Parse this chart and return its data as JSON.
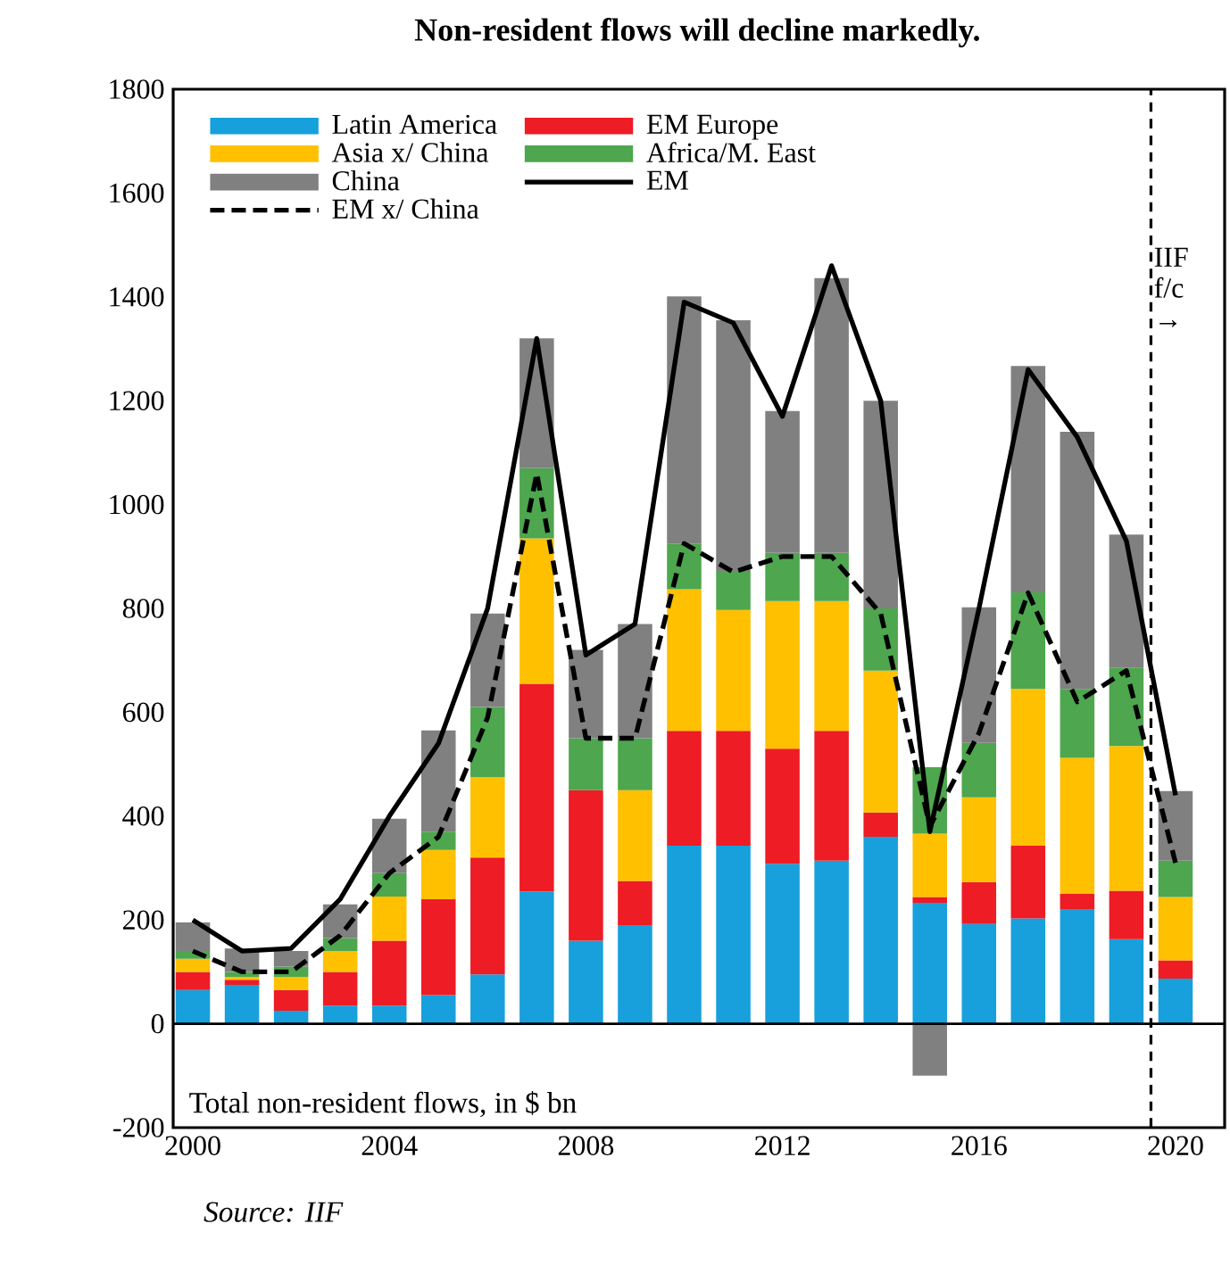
{
  "chart_data": {
    "type": "bar",
    "title": "Non-resident flows will decline markedly.",
    "annotations": [
      "Total non-resident flows, in $ bn",
      "Source: IIF"
    ],
    "x": [
      2000,
      2001,
      2002,
      2003,
      2004,
      2005,
      2006,
      2007,
      2008,
      2009,
      2010,
      2011,
      2012,
      2013,
      2014,
      2015,
      2016,
      2017,
      2018,
      2019,
      2020
    ],
    "stacked": true,
    "series": [
      {
        "name": "Latin America",
        "color": "#17a0db",
        "values": [
          65,
          75,
          25,
          35,
          35,
          55,
          95,
          255,
          160,
          190,
          343,
          343,
          308,
          314,
          360,
          233,
          192,
          203,
          221,
          163,
          87
        ]
      },
      {
        "name": "EM Europe",
        "color": "#ee1c25",
        "values": [
          35,
          10,
          40,
          65,
          125,
          185,
          225,
          400,
          290,
          85,
          221,
          221,
          222,
          250,
          47,
          11,
          81,
          140,
          29,
          93,
          35
        ]
      },
      {
        "name": "Asia x/ China",
        "color": "#ffc000",
        "values": [
          25,
          5,
          25,
          40,
          85,
          95,
          155,
          280,
          0,
          175,
          273,
          233,
          284,
          250,
          273,
          122,
          163,
          302,
          262,
          279,
          122
        ]
      },
      {
        "name": "Africa/M. East",
        "color": "#4ea64e",
        "values": [
          15,
          10,
          20,
          25,
          45,
          35,
          135,
          135,
          100,
          100,
          87,
          75,
          93,
          93,
          120,
          128,
          105,
          186,
          133,
          151,
          70
        ]
      },
      {
        "name": "China",
        "color": "#808080",
        "values": [
          55,
          45,
          30,
          65,
          105,
          195,
          180,
          250,
          170,
          220,
          477,
          483,
          273,
          529,
          400,
          -100,
          261,
          436,
          495,
          256,
          134
        ]
      },
      {
        "name": "EM",
        "type": "line",
        "color": "#000000",
        "line_style": "solid",
        "values": [
          200,
          140,
          145,
          240,
          400,
          540,
          800,
          1320,
          710,
          770,
          1390,
          1350,
          1170,
          1460,
          1200,
          370,
          800,
          1260,
          1130,
          930,
          440
        ]
      },
      {
        "name": "EM x/ China",
        "type": "line",
        "color": "#000000",
        "line_style": "dashed",
        "values": [
          140,
          100,
          100,
          170,
          290,
          360,
          590,
          1060,
          550,
          550,
          925,
          870,
          900,
          900,
          790,
          380,
          560,
          830,
          620,
          680,
          310
        ]
      }
    ],
    "xlim": [
      1999.6,
      2021
    ],
    "ylim": [
      -200,
      1800
    ],
    "xticks": [
      2000,
      2004,
      2008,
      2012,
      2016,
      2020
    ],
    "yticks": [
      -200,
      0,
      200,
      400,
      600,
      800,
      1000,
      1200,
      1400,
      1600,
      1800
    ],
    "legend": "top left",
    "ref_lines": [
      {
        "axis": "x",
        "value": 2019.5,
        "label": "IIF f/c →",
        "line_style": "dashed",
        "color": "#000000"
      }
    ]
  }
}
